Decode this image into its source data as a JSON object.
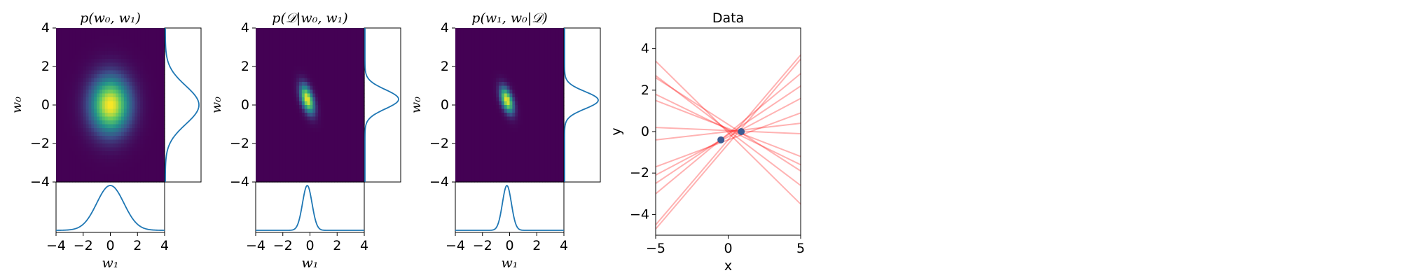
{
  "chart_data": [
    {
      "type": "heatmap",
      "title": "p(w₀, w₁)",
      "xlabel": "w₁",
      "ylabel": "w₀",
      "xlim": [
        -4,
        4
      ],
      "ylim": [
        -4,
        4
      ],
      "xticks": [
        "−4",
        "−2",
        "0",
        "2",
        "4"
      ],
      "yticks": [
        "−4",
        "−2",
        "0",
        "2",
        "4"
      ],
      "mean": [
        0,
        0
      ],
      "std": [
        1,
        1
      ],
      "correlation": 0,
      "colormap": "viridis",
      "marginal_right": {
        "type": "line",
        "description": "density of w₀",
        "mean": 0,
        "std": 1
      },
      "marginal_bottom": {
        "type": "line",
        "description": "density of w₁",
        "mean": 0,
        "std": 1
      }
    },
    {
      "type": "heatmap",
      "title": "p(𝒟|w₀, w₁)",
      "xlabel": "w₁",
      "ylabel": "w₀",
      "xlim": [
        -4,
        4
      ],
      "ylim": [
        -4,
        4
      ],
      "xticks": [
        "−4",
        "−2",
        "0",
        "2",
        "4"
      ],
      "yticks": [
        "−4",
        "−2",
        "0",
        "2",
        "4"
      ],
      "mean": [
        -0.2,
        0.3
      ],
      "std": [
        0.35,
        0.5
      ],
      "correlation": -0.5,
      "colormap": "viridis",
      "marginal_right": {
        "type": "line",
        "description": "density of w₀",
        "mean": 0.3,
        "std": 0.5
      },
      "marginal_bottom": {
        "type": "line",
        "description": "density of w₁",
        "mean": -0.2,
        "std": 0.35
      }
    },
    {
      "type": "heatmap",
      "title": "p(w₁, w₀|𝒟)",
      "xlabel": "w₁",
      "ylabel": "w₀",
      "xlim": [
        -4,
        4
      ],
      "ylim": [
        -4,
        4
      ],
      "xticks": [
        "−4",
        "−2",
        "0",
        "2",
        "4"
      ],
      "yticks": [
        "−4",
        "−2",
        "0",
        "2",
        "4"
      ],
      "mean": [
        -0.2,
        0.25
      ],
      "std": [
        0.33,
        0.45
      ],
      "correlation": -0.5,
      "colormap": "viridis",
      "marginal_right": {
        "type": "line",
        "description": "density of w₀",
        "mean": 0.25,
        "std": 0.45
      },
      "marginal_bottom": {
        "type": "line",
        "description": "density of w₁",
        "mean": -0.2,
        "std": 0.33
      }
    },
    {
      "type": "line",
      "title": "Data",
      "xlabel": "x",
      "ylabel": "y",
      "xlim": [
        -5,
        5
      ],
      "ylim": [
        -5,
        5
      ],
      "xticks": [
        "−5",
        "0",
        "5"
      ],
      "yticks": [
        "−4",
        "−2",
        "0",
        "2",
        "4"
      ],
      "line_color": "#ff0000",
      "line_alpha": 0.3,
      "points_color": "#3b5b92",
      "points": [
        {
          "x": -0.5,
          "y": -0.4
        },
        {
          "x": 0.9,
          "y": 0.0
        }
      ],
      "lines": [
        {
          "start": [
            -5,
            3.4
          ],
          "end": [
            5,
            -3.5
          ]
        },
        {
          "start": [
            -5,
            2.7
          ],
          "end": [
            5,
            -2.6
          ]
        },
        {
          "start": [
            -5,
            2.6
          ],
          "end": [
            5,
            -1.9
          ]
        },
        {
          "start": [
            -5,
            1.8
          ],
          "end": [
            5,
            -1.6
          ]
        },
        {
          "start": [
            -5,
            1.5
          ],
          "end": [
            5,
            -1.2
          ]
        },
        {
          "start": [
            -5,
            0.2
          ],
          "end": [
            5,
            -0.1
          ]
        },
        {
          "start": [
            -5,
            -0.4
          ],
          "end": [
            5,
            0.4
          ]
        },
        {
          "start": [
            -5,
            -1.7
          ],
          "end": [
            5,
            0.9
          ]
        },
        {
          "start": [
            -5,
            -2.1
          ],
          "end": [
            5,
            1.6
          ]
        },
        {
          "start": [
            -5,
            -2.5
          ],
          "end": [
            5,
            2.2
          ]
        },
        {
          "start": [
            -5,
            -3.0
          ],
          "end": [
            5,
            2.8
          ]
        },
        {
          "start": [
            -5,
            -4.5
          ],
          "end": [
            5,
            3.7
          ]
        },
        {
          "start": [
            -5,
            -4.7
          ],
          "end": [
            5,
            3.5
          ]
        }
      ]
    }
  ]
}
